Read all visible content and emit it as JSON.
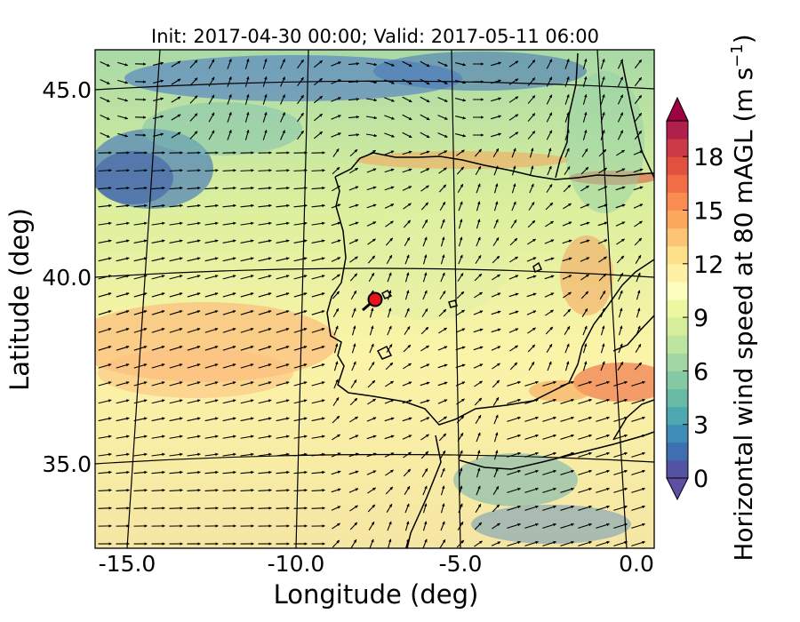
{
  "map": {
    "title": "Init: 2017-04-30 00:00; Valid: 2017-05-11 06:00",
    "xlabel": "Longitude (deg)",
    "ylabel": "Latitude (deg)",
    "lon_ticks": [
      "-15.0",
      "-10.0",
      "-5.0",
      "0.0"
    ],
    "lat_ticks": [
      "45.0",
      "40.0",
      "35.0"
    ],
    "marker": {
      "lon": -7.6,
      "lat": 39.3,
      "color": "#e8141b"
    }
  },
  "colorbar": {
    "label": "Horizontal wind speed at 80 mAGL (m s",
    "label_exp": "−1",
    "label_end": ")",
    "ticks": [
      "0",
      "3",
      "6",
      "9",
      "12",
      "15",
      "18"
    ],
    "min": 0,
    "max": 20,
    "extend": "both",
    "colors": [
      "#5452a3",
      "#3f6eb1",
      "#3f8db6",
      "#4ea8b0",
      "#67bba5",
      "#84c8a4",
      "#a2d6a5",
      "#bde5a0",
      "#d6ee9b",
      "#ebf7a1",
      "#fcfdbf",
      "#fef0a5",
      "#fee08b",
      "#fdc474",
      "#fca95e",
      "#f88c51",
      "#f06d45",
      "#e0513f",
      "#cc3a47",
      "#b11f4b"
    ],
    "extend_low_color": "#5e4fa2",
    "extend_high_color": "#9e0142"
  }
}
